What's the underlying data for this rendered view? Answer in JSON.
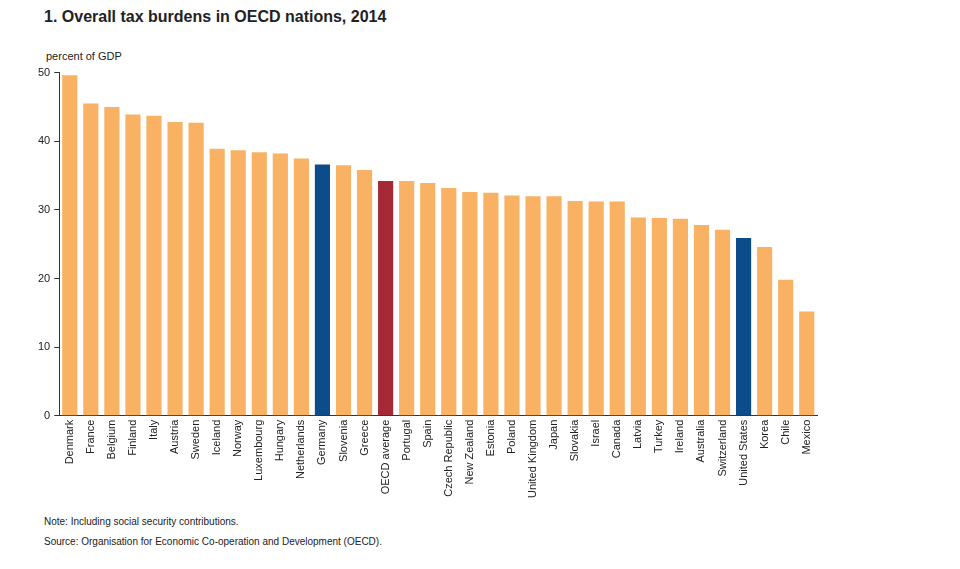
{
  "chart_data": {
    "type": "bar",
    "title": "1. Overall tax burdens in OECD nations, 2014",
    "ylabel": "percent of GDP",
    "note": "Note: Including social security contributions.",
    "source": "Source: Organisation for Economic Co-operation and Development (OECD).",
    "categories": [
      "Denmark",
      "France",
      "Belgium",
      "Finland",
      "Italy",
      "Austria",
      "Sweden",
      "Iceland",
      "Norway",
      "Luxembourg",
      "Hungary",
      "Netherlands",
      "Germany",
      "Slovenia",
      "Greece",
      "OECD average",
      "Portugal",
      "Spain",
      "Czech Republic",
      "New Zealand",
      "Estonia",
      "Poland",
      "United Kingdom",
      "Japan",
      "Slovakia",
      "Israel",
      "Canada",
      "Latvia",
      "Turkey",
      "Ireland",
      "Australia",
      "Switzerland",
      "United States",
      "Korea",
      "Chile",
      "Mexico"
    ],
    "values": [
      49.6,
      45.5,
      45.0,
      43.9,
      43.7,
      42.8,
      42.7,
      38.9,
      38.7,
      38.4,
      38.2,
      37.5,
      36.6,
      36.5,
      35.8,
      34.2,
      34.2,
      33.9,
      33.2,
      32.6,
      32.5,
      32.1,
      32.0,
      32.0,
      31.3,
      31.2,
      31.2,
      28.9,
      28.8,
      28.7,
      27.8,
      27.1,
      25.9,
      24.6,
      19.8,
      15.2
    ],
    "colors": [
      "#f9b163",
      "#f9b163",
      "#f9b163",
      "#f9b163",
      "#f9b163",
      "#f9b163",
      "#f9b163",
      "#f9b163",
      "#f9b163",
      "#f9b163",
      "#f9b163",
      "#f9b163",
      "#0d4c8b",
      "#f9b163",
      "#f9b163",
      "#a52a35",
      "#f9b163",
      "#f9b163",
      "#f9b163",
      "#f9b163",
      "#f9b163",
      "#f9b163",
      "#f9b163",
      "#f9b163",
      "#f9b163",
      "#f9b163",
      "#f9b163",
      "#f9b163",
      "#f9b163",
      "#f9b163",
      "#f9b163",
      "#f9b163",
      "#0d4c8b",
      "#f9b163",
      "#f9b163",
      "#f9b163"
    ],
    "ylim": [
      0,
      50
    ],
    "yticks": [
      0,
      10,
      20,
      30,
      40,
      50
    ],
    "grid": false
  }
}
